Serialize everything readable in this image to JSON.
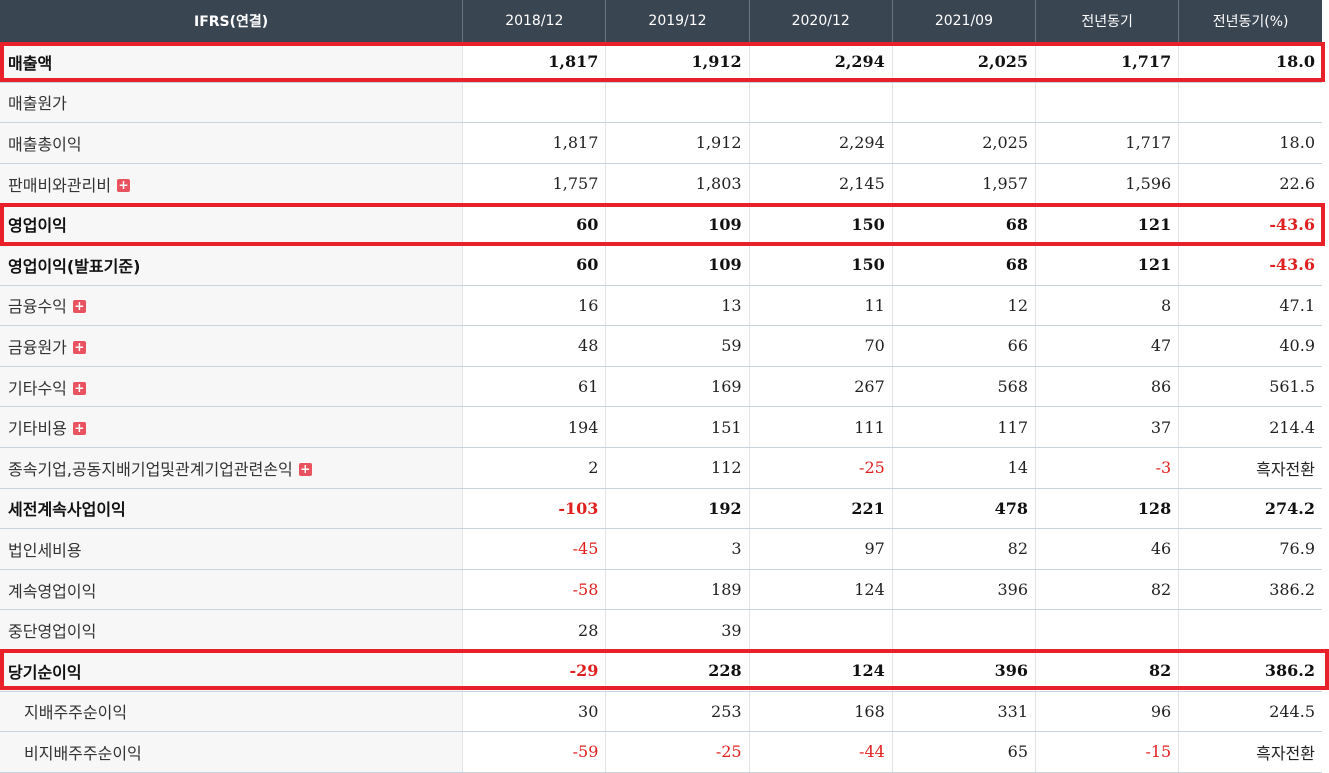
{
  "header": [
    "IFRS(연결)",
    "2018/12",
    "2019/12",
    "2020/12",
    "2021/09",
    "전년동기",
    "전년동기(%)"
  ],
  "plus_glyph": "+",
  "highlight_color": "#e8202a",
  "negative_color": "#e0201f",
  "rows": [
    {
      "label": "매출액",
      "values": [
        "1,817",
        "1,912",
        "2,294",
        "2,025",
        "1,717",
        "18.0"
      ],
      "bold": true
    },
    {
      "label": "매출원가",
      "values": [
        "",
        "",
        "",
        "",
        "",
        ""
      ]
    },
    {
      "label": "매출총이익",
      "values": [
        "1,817",
        "1,912",
        "2,294",
        "2,025",
        "1,717",
        "18.0"
      ]
    },
    {
      "label": "판매비와관리비",
      "expand": true,
      "values": [
        "1,757",
        "1,803",
        "2,145",
        "1,957",
        "1,596",
        "22.6"
      ]
    },
    {
      "label": "영업이익",
      "values": [
        "60",
        "109",
        "150",
        "68",
        "121",
        "-43.6"
      ],
      "bold": true
    },
    {
      "label": "영업이익(발표기준)",
      "values": [
        "60",
        "109",
        "150",
        "68",
        "121",
        "-43.6"
      ],
      "bold": true
    },
    {
      "label": "금융수익",
      "expand": true,
      "values": [
        "16",
        "13",
        "11",
        "12",
        "8",
        "47.1"
      ]
    },
    {
      "label": "금융원가",
      "expand": true,
      "values": [
        "48",
        "59",
        "70",
        "66",
        "47",
        "40.9"
      ]
    },
    {
      "label": "기타수익",
      "expand": true,
      "values": [
        "61",
        "169",
        "267",
        "568",
        "86",
        "561.5"
      ]
    },
    {
      "label": "기타비용",
      "expand": true,
      "values": [
        "194",
        "151",
        "111",
        "117",
        "37",
        "214.4"
      ]
    },
    {
      "label": "종속기업,공동지배기업및관계기업관련손익",
      "expand": true,
      "values": [
        "2",
        "112",
        "-25",
        "14",
        "-3",
        "흑자전환"
      ]
    },
    {
      "label": "세전계속사업이익",
      "values": [
        "-103",
        "192",
        "221",
        "478",
        "128",
        "274.2"
      ],
      "bold": true
    },
    {
      "label": "법인세비용",
      "values": [
        "-45",
        "3",
        "97",
        "82",
        "46",
        "76.9"
      ]
    },
    {
      "label": "계속영업이익",
      "values": [
        "-58",
        "189",
        "124",
        "396",
        "82",
        "386.2"
      ]
    },
    {
      "label": "중단영업이익",
      "values": [
        "28",
        "39",
        "",
        "",
        "",
        ""
      ]
    },
    {
      "label": "당기순이익",
      "values": [
        "-29",
        "228",
        "124",
        "396",
        "82",
        "386.2"
      ],
      "bold": true
    },
    {
      "label": "지배주주순이익",
      "indent": true,
      "values": [
        "30",
        "253",
        "168",
        "331",
        "96",
        "244.5"
      ]
    },
    {
      "label": "비지배주주순이익",
      "indent": true,
      "values": [
        "-59",
        "-25",
        "-44",
        "65",
        "-15",
        "흑자전환"
      ]
    }
  ]
}
